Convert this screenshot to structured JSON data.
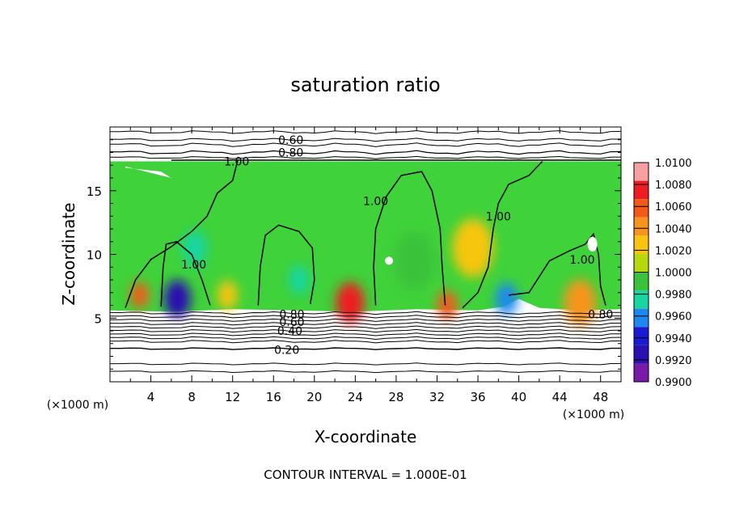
{
  "chart_data": {
    "type": "heatmap",
    "title": "saturation ratio",
    "xlabel": "X-coordinate",
    "ylabel": "Z-coordinate",
    "x_unit_left": "(×1000 m)",
    "x_unit_right": "(×1000 m)",
    "footer": "CONTOUR INTERVAL = 1.000E-01",
    "xlim": [
      0,
      50
    ],
    "ylim": [
      0,
      20
    ],
    "x_ticks": [
      4,
      8,
      12,
      16,
      20,
      24,
      28,
      32,
      36,
      40,
      44,
      48
    ],
    "y_ticks": [
      5,
      10,
      15
    ],
    "colorbar": {
      "min": 0.99,
      "max": 1.01,
      "labels": [
        "1.0100",
        "1.0080",
        "1.0060",
        "1.0040",
        "1.0020",
        "1.0000",
        "0.9980",
        "0.9960",
        "0.9940",
        "0.9920",
        "0.9900"
      ],
      "colors": [
        "#f6a0a4",
        "#ee1c24",
        "#f35a1a",
        "#f7941d",
        "#f7c510",
        "#b6d80c",
        "#3ac23a",
        "#18d6a0",
        "#1e88f0",
        "#1a1ad6",
        "#2a10b0",
        "#7a1aa8"
      ]
    },
    "field_background": "#3fd23a",
    "contour_labels": [
      {
        "text": "0.60",
        "x": 17.7,
        "y": 19.0
      },
      {
        "text": "0.80",
        "x": 17.7,
        "y": 18.0
      },
      {
        "text": "1.00",
        "x": 12.4,
        "y": 17.3
      },
      {
        "text": "1.00",
        "x": 26.0,
        "y": 14.2
      },
      {
        "text": "1.00",
        "x": 38.0,
        "y": 13.0
      },
      {
        "text": "1.00",
        "x": 8.2,
        "y": 9.2
      },
      {
        "text": "1.00",
        "x": 46.2,
        "y": 9.6
      },
      {
        "text": "0.80",
        "x": 17.8,
        "y": 5.3
      },
      {
        "text": "0.60",
        "x": 17.8,
        "y": 4.7
      },
      {
        "text": "0.40",
        "x": 17.6,
        "y": 4.0
      },
      {
        "text": "0.20",
        "x": 17.3,
        "y": 2.5
      },
      {
        "text": "0.80",
        "x": 48.0,
        "y": 5.3
      }
    ],
    "color_patches": [
      {
        "x": 2.9,
        "y": 6.8,
        "r": 0.9,
        "value": 1.006
      },
      {
        "x": 6.6,
        "y": 6.5,
        "r": 1.3,
        "value": 0.993
      },
      {
        "x": 23.5,
        "y": 6.2,
        "r": 1.4,
        "value": 1.007
      },
      {
        "x": 33.0,
        "y": 6.0,
        "r": 1.0,
        "value": 1.006
      },
      {
        "x": 46.0,
        "y": 6.2,
        "r": 1.6,
        "value": 1.005
      },
      {
        "x": 11.5,
        "y": 6.8,
        "r": 1.0,
        "value": 1.003
      },
      {
        "x": 35.5,
        "y": 10.5,
        "r": 2.0,
        "value": 1.002
      },
      {
        "x": 29.8,
        "y": 9.5,
        "r": 2.0,
        "value": 0.999
      },
      {
        "x": 18.5,
        "y": 8.0,
        "r": 1.0,
        "value": 0.997
      },
      {
        "x": 8.3,
        "y": 10.5,
        "r": 1.2,
        "value": 0.998
      },
      {
        "x": 38.8,
        "y": 6.5,
        "r": 1.1,
        "value": 0.996
      }
    ]
  }
}
